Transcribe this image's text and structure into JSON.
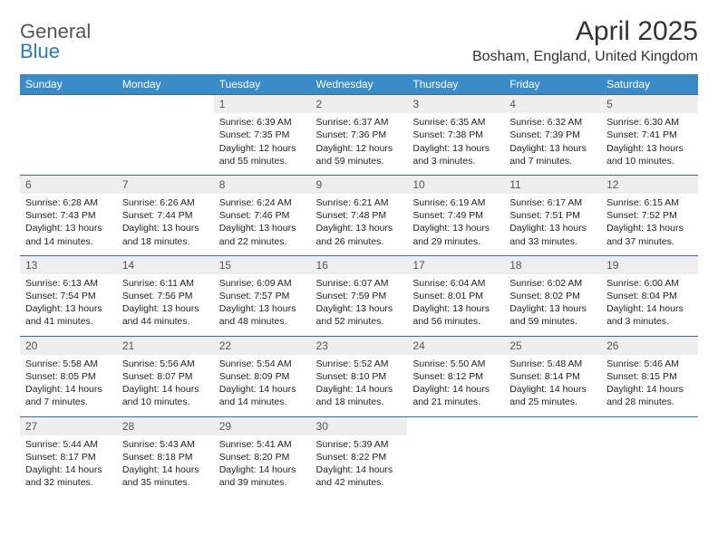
{
  "logo": {
    "general": "General",
    "blue": "Blue"
  },
  "header": {
    "month_title": "April 2025",
    "location": "Bosham, England, United Kingdom"
  },
  "colors": {
    "header_bg": "#3b8bc9",
    "header_text": "#ffffff",
    "cell_border": "#3b6a92",
    "daynum_bg": "#eeeeee",
    "logo_blue": "#2b7bbd"
  },
  "day_names": [
    "Sunday",
    "Monday",
    "Tuesday",
    "Wednesday",
    "Thursday",
    "Friday",
    "Saturday"
  ],
  "weeks": [
    [
      null,
      null,
      {
        "n": "1",
        "sr": "Sunrise: 6:39 AM",
        "ss": "Sunset: 7:35 PM",
        "dl": "Daylight: 12 hours and 55 minutes."
      },
      {
        "n": "2",
        "sr": "Sunrise: 6:37 AM",
        "ss": "Sunset: 7:36 PM",
        "dl": "Daylight: 12 hours and 59 minutes."
      },
      {
        "n": "3",
        "sr": "Sunrise: 6:35 AM",
        "ss": "Sunset: 7:38 PM",
        "dl": "Daylight: 13 hours and 3 minutes."
      },
      {
        "n": "4",
        "sr": "Sunrise: 6:32 AM",
        "ss": "Sunset: 7:39 PM",
        "dl": "Daylight: 13 hours and 7 minutes."
      },
      {
        "n": "5",
        "sr": "Sunrise: 6:30 AM",
        "ss": "Sunset: 7:41 PM",
        "dl": "Daylight: 13 hours and 10 minutes."
      }
    ],
    [
      {
        "n": "6",
        "sr": "Sunrise: 6:28 AM",
        "ss": "Sunset: 7:43 PM",
        "dl": "Daylight: 13 hours and 14 minutes."
      },
      {
        "n": "7",
        "sr": "Sunrise: 6:26 AM",
        "ss": "Sunset: 7:44 PM",
        "dl": "Daylight: 13 hours and 18 minutes."
      },
      {
        "n": "8",
        "sr": "Sunrise: 6:24 AM",
        "ss": "Sunset: 7:46 PM",
        "dl": "Daylight: 13 hours and 22 minutes."
      },
      {
        "n": "9",
        "sr": "Sunrise: 6:21 AM",
        "ss": "Sunset: 7:48 PM",
        "dl": "Daylight: 13 hours and 26 minutes."
      },
      {
        "n": "10",
        "sr": "Sunrise: 6:19 AM",
        "ss": "Sunset: 7:49 PM",
        "dl": "Daylight: 13 hours and 29 minutes."
      },
      {
        "n": "11",
        "sr": "Sunrise: 6:17 AM",
        "ss": "Sunset: 7:51 PM",
        "dl": "Daylight: 13 hours and 33 minutes."
      },
      {
        "n": "12",
        "sr": "Sunrise: 6:15 AM",
        "ss": "Sunset: 7:52 PM",
        "dl": "Daylight: 13 hours and 37 minutes."
      }
    ],
    [
      {
        "n": "13",
        "sr": "Sunrise: 6:13 AM",
        "ss": "Sunset: 7:54 PM",
        "dl": "Daylight: 13 hours and 41 minutes."
      },
      {
        "n": "14",
        "sr": "Sunrise: 6:11 AM",
        "ss": "Sunset: 7:56 PM",
        "dl": "Daylight: 13 hours and 44 minutes."
      },
      {
        "n": "15",
        "sr": "Sunrise: 6:09 AM",
        "ss": "Sunset: 7:57 PM",
        "dl": "Daylight: 13 hours and 48 minutes."
      },
      {
        "n": "16",
        "sr": "Sunrise: 6:07 AM",
        "ss": "Sunset: 7:59 PM",
        "dl": "Daylight: 13 hours and 52 minutes."
      },
      {
        "n": "17",
        "sr": "Sunrise: 6:04 AM",
        "ss": "Sunset: 8:01 PM",
        "dl": "Daylight: 13 hours and 56 minutes."
      },
      {
        "n": "18",
        "sr": "Sunrise: 6:02 AM",
        "ss": "Sunset: 8:02 PM",
        "dl": "Daylight: 13 hours and 59 minutes."
      },
      {
        "n": "19",
        "sr": "Sunrise: 6:00 AM",
        "ss": "Sunset: 8:04 PM",
        "dl": "Daylight: 14 hours and 3 minutes."
      }
    ],
    [
      {
        "n": "20",
        "sr": "Sunrise: 5:58 AM",
        "ss": "Sunset: 8:05 PM",
        "dl": "Daylight: 14 hours and 7 minutes."
      },
      {
        "n": "21",
        "sr": "Sunrise: 5:56 AM",
        "ss": "Sunset: 8:07 PM",
        "dl": "Daylight: 14 hours and 10 minutes."
      },
      {
        "n": "22",
        "sr": "Sunrise: 5:54 AM",
        "ss": "Sunset: 8:09 PM",
        "dl": "Daylight: 14 hours and 14 minutes."
      },
      {
        "n": "23",
        "sr": "Sunrise: 5:52 AM",
        "ss": "Sunset: 8:10 PM",
        "dl": "Daylight: 14 hours and 18 minutes."
      },
      {
        "n": "24",
        "sr": "Sunrise: 5:50 AM",
        "ss": "Sunset: 8:12 PM",
        "dl": "Daylight: 14 hours and 21 minutes."
      },
      {
        "n": "25",
        "sr": "Sunrise: 5:48 AM",
        "ss": "Sunset: 8:14 PM",
        "dl": "Daylight: 14 hours and 25 minutes."
      },
      {
        "n": "26",
        "sr": "Sunrise: 5:46 AM",
        "ss": "Sunset: 8:15 PM",
        "dl": "Daylight: 14 hours and 28 minutes."
      }
    ],
    [
      {
        "n": "27",
        "sr": "Sunrise: 5:44 AM",
        "ss": "Sunset: 8:17 PM",
        "dl": "Daylight: 14 hours and 32 minutes."
      },
      {
        "n": "28",
        "sr": "Sunrise: 5:43 AM",
        "ss": "Sunset: 8:18 PM",
        "dl": "Daylight: 14 hours and 35 minutes."
      },
      {
        "n": "29",
        "sr": "Sunrise: 5:41 AM",
        "ss": "Sunset: 8:20 PM",
        "dl": "Daylight: 14 hours and 39 minutes."
      },
      {
        "n": "30",
        "sr": "Sunrise: 5:39 AM",
        "ss": "Sunset: 8:22 PM",
        "dl": "Daylight: 14 hours and 42 minutes."
      },
      null,
      null,
      null
    ]
  ]
}
